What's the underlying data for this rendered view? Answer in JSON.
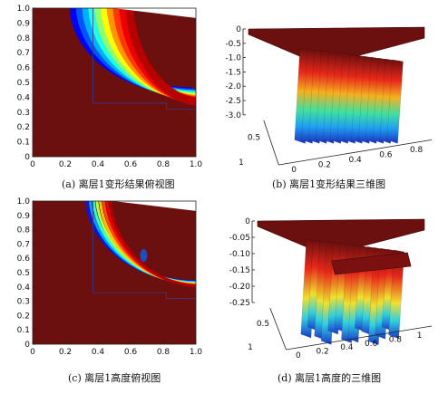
{
  "chart_data": [
    {
      "type": "heatmap",
      "panel": "a",
      "caption": "(a) 离层1变形结果俯视图",
      "view": "top",
      "xticks": [
        "0",
        "0.2",
        "0.4",
        "0.6",
        "0.8",
        "1.0"
      ],
      "yticks": [
        "0",
        "0.1",
        "0.2",
        "0.3",
        "0.4",
        "0.5",
        "0.6",
        "0.7",
        "0.8",
        "0.9",
        "1.0"
      ],
      "xlim": [
        0,
        1.0
      ],
      "ylim": [
        0,
        1.0
      ],
      "colormap": "jet",
      "band_center_x": 0.75,
      "band_center_y": 0.4,
      "background_color": "#6b0f0f"
    },
    {
      "type": "surface3d",
      "panel": "b",
      "caption": "(b) 离层1变形结果三维图",
      "view": "3d",
      "zticks": [
        "0",
        "-0.5",
        "-1.0",
        "-1.5",
        "-2.0",
        "-2.5",
        "-3.0"
      ],
      "zlim": [
        -3.0,
        0
      ],
      "xticks": [
        "0",
        "0.2",
        "0.4",
        "0.6",
        "0.8"
      ],
      "yticks": [
        "1",
        "0.5"
      ],
      "colormap": "jet"
    },
    {
      "type": "heatmap",
      "panel": "c",
      "caption": "(c) 离层1高度俯视图",
      "view": "top",
      "xticks": [
        "0",
        "0.2",
        "0.4",
        "0.6",
        "0.8",
        "1.0"
      ],
      "yticks": [
        "0",
        "0.1",
        "0.2",
        "0.3",
        "0.4",
        "0.5",
        "0.6",
        "0.7",
        "0.8",
        "0.9",
        "1.0"
      ],
      "xlim": [
        0,
        1.0
      ],
      "ylim": [
        0,
        1.0
      ],
      "colormap": "jet",
      "band_center_x": 0.72,
      "band_center_y": 0.42,
      "background_color": "#6b0f0f"
    },
    {
      "type": "surface3d",
      "panel": "d",
      "caption": "(d) 离层1高度的三维图",
      "view": "3d",
      "zticks": [
        "0",
        "-0.05",
        "-0.10",
        "-0.15",
        "-0.20",
        "-0.25"
      ],
      "zlim": [
        -0.25,
        0
      ],
      "xticks": [
        "0",
        "0.2",
        "0.4",
        "0.6",
        "0.8",
        "1"
      ],
      "yticks": [
        "1",
        "0.5"
      ],
      "colormap": "jet"
    }
  ]
}
